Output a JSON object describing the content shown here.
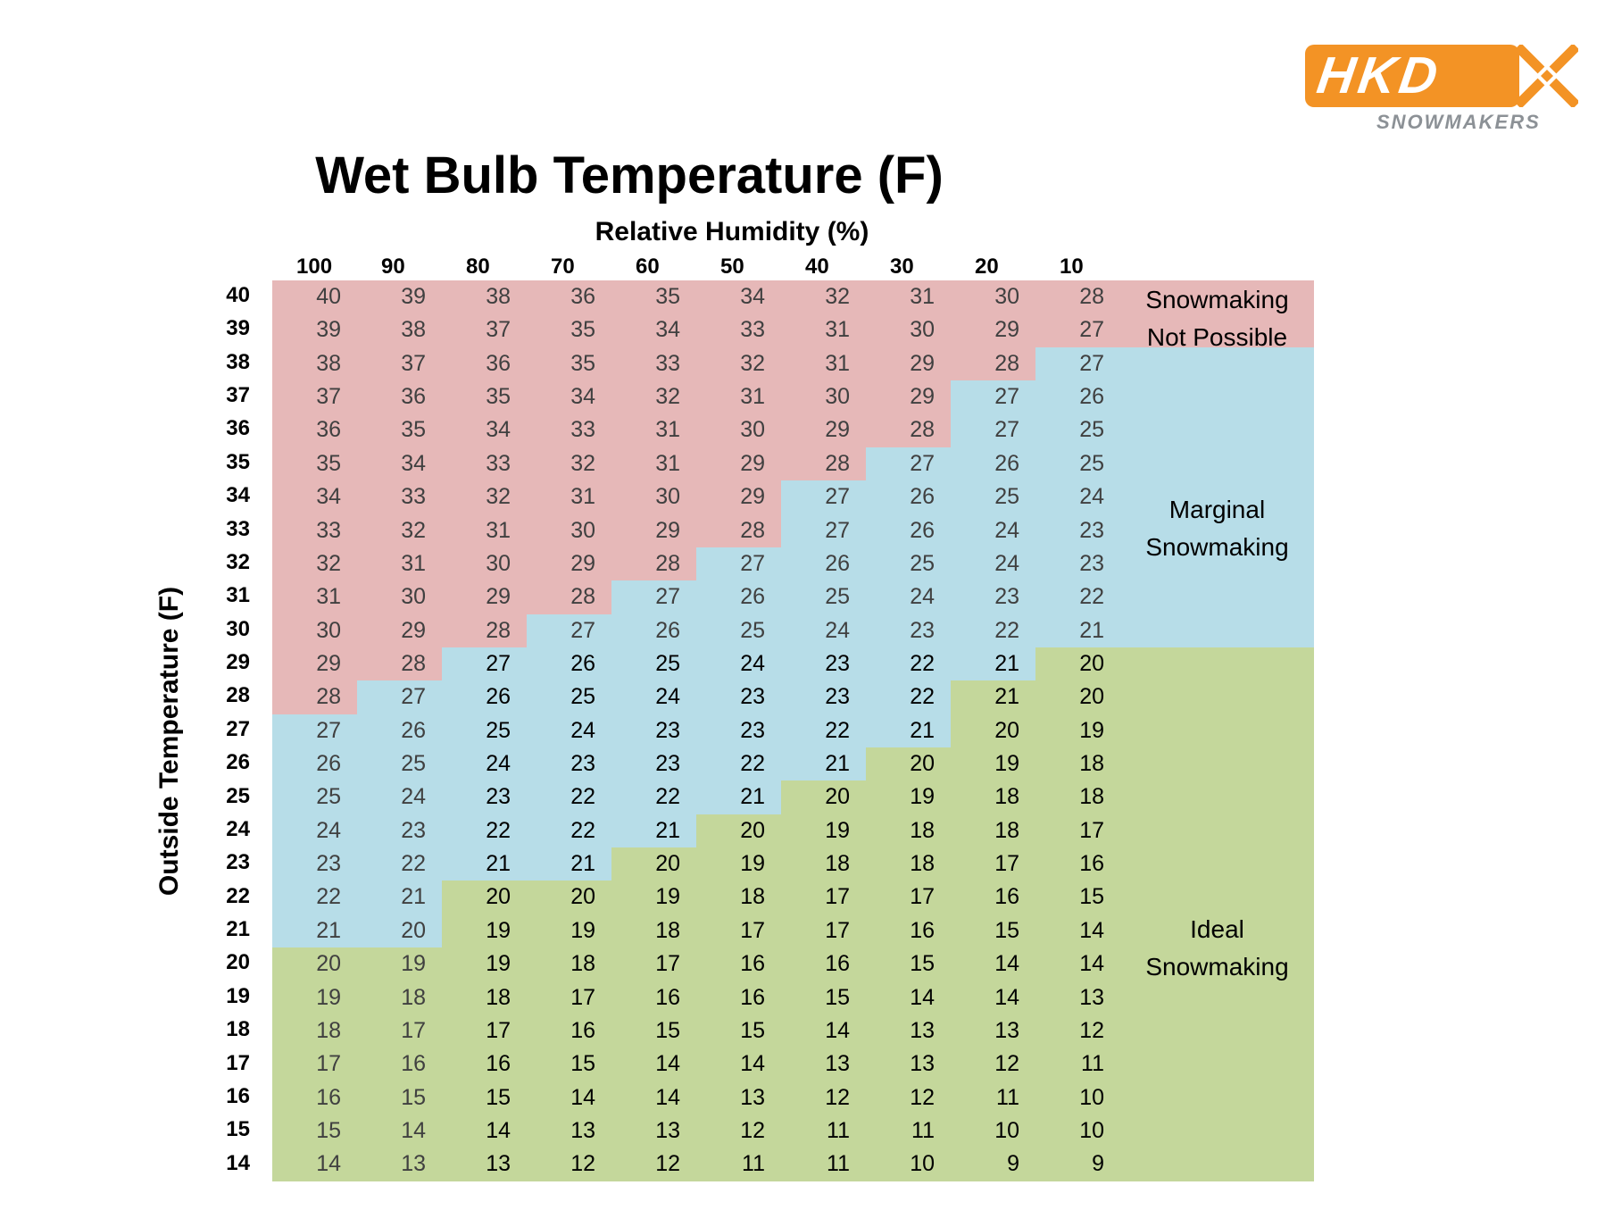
{
  "logo": {
    "brand": "HKD",
    "tagline": "SNOWMAKERS",
    "color_primary": "#F39325",
    "color_secondary": "#8C9196"
  },
  "colors": {
    "not_possible": "#E6B8B8",
    "marginal": "#B7DDE8",
    "ideal": "#C4D79B",
    "text_gray": "#404040",
    "text_black": "#000000"
  },
  "zones": {
    "not_possible": "Snowmaking Not Possible",
    "not_possible_line1": "Snowmaking",
    "not_possible_line2": "Not Possible",
    "marginal_line1": "Marginal",
    "marginal_line2": "Snowmaking",
    "ideal_line1": "Ideal",
    "ideal_line2": "Snowmaking"
  },
  "chart_data": {
    "type": "table",
    "title": "Wet Bulb Temperature (F)",
    "xlabel": "Relative Humidity (%)",
    "ylabel": "Outside Temperature (F)",
    "columns": [
      "100",
      "90",
      "80",
      "70",
      "60",
      "50",
      "40",
      "30",
      "20",
      "10"
    ],
    "rows": [
      {
        "temp": "40",
        "values": [
          "40",
          "39",
          "38",
          "36",
          "35",
          "34",
          "32",
          "31",
          "30",
          "28"
        ],
        "pink": 10,
        "blue": 0
      },
      {
        "temp": "39",
        "values": [
          "39",
          "38",
          "37",
          "35",
          "34",
          "33",
          "31",
          "30",
          "29",
          "27"
        ],
        "pink": 10,
        "blue": 0
      },
      {
        "temp": "38",
        "values": [
          "38",
          "37",
          "36",
          "35",
          "33",
          "32",
          "31",
          "29",
          "28",
          "27"
        ],
        "pink": 9,
        "blue": 1
      },
      {
        "temp": "37",
        "values": [
          "37",
          "36",
          "35",
          "34",
          "32",
          "31",
          "30",
          "29",
          "27",
          "26"
        ],
        "pink": 8,
        "blue": 2
      },
      {
        "temp": "36",
        "values": [
          "36",
          "35",
          "34",
          "33",
          "31",
          "30",
          "29",
          "28",
          "27",
          "25"
        ],
        "pink": 8,
        "blue": 2
      },
      {
        "temp": "35",
        "values": [
          "35",
          "34",
          "33",
          "32",
          "31",
          "29",
          "28",
          "27",
          "26",
          "25"
        ],
        "pink": 7,
        "blue": 3
      },
      {
        "temp": "34",
        "values": [
          "34",
          "33",
          "32",
          "31",
          "30",
          "29",
          "27",
          "26",
          "25",
          "24"
        ],
        "pink": 6,
        "blue": 4
      },
      {
        "temp": "33",
        "values": [
          "33",
          "32",
          "31",
          "30",
          "29",
          "28",
          "27",
          "26",
          "24",
          "23"
        ],
        "pink": 6,
        "blue": 4
      },
      {
        "temp": "32",
        "values": [
          "32",
          "31",
          "30",
          "29",
          "28",
          "27",
          "26",
          "25",
          "24",
          "23"
        ],
        "pink": 5,
        "blue": 5
      },
      {
        "temp": "31",
        "values": [
          "31",
          "30",
          "29",
          "28",
          "27",
          "26",
          "25",
          "24",
          "23",
          "22"
        ],
        "pink": 4,
        "blue": 6
      },
      {
        "temp": "30",
        "values": [
          "30",
          "29",
          "28",
          "27",
          "26",
          "25",
          "24",
          "23",
          "22",
          "21"
        ],
        "pink": 3,
        "blue": 7
      },
      {
        "temp": "29",
        "values": [
          "29",
          "28",
          "27",
          "26",
          "25",
          "24",
          "23",
          "22",
          "21",
          "20"
        ],
        "pink": 2,
        "blue": 7
      },
      {
        "temp": "28",
        "values": [
          "28",
          "27",
          "26",
          "25",
          "24",
          "23",
          "23",
          "22",
          "21",
          "20"
        ],
        "pink": 1,
        "blue": 7
      },
      {
        "temp": "27",
        "values": [
          "27",
          "26",
          "25",
          "24",
          "23",
          "23",
          "22",
          "21",
          "20",
          "19"
        ],
        "pink": 0,
        "blue": 8
      },
      {
        "temp": "26",
        "values": [
          "26",
          "25",
          "24",
          "23",
          "23",
          "22",
          "21",
          "20",
          "19",
          "18"
        ],
        "pink": 0,
        "blue": 7
      },
      {
        "temp": "25",
        "values": [
          "25",
          "24",
          "23",
          "22",
          "22",
          "21",
          "20",
          "19",
          "18",
          "18"
        ],
        "pink": 0,
        "blue": 6
      },
      {
        "temp": "24",
        "values": [
          "24",
          "23",
          "22",
          "22",
          "21",
          "20",
          "19",
          "18",
          "18",
          "17"
        ],
        "pink": 0,
        "blue": 5
      },
      {
        "temp": "23",
        "values": [
          "23",
          "22",
          "21",
          "21",
          "20",
          "19",
          "18",
          "18",
          "17",
          "16"
        ],
        "pink": 0,
        "blue": 4
      },
      {
        "temp": "22",
        "values": [
          "22",
          "21",
          "20",
          "20",
          "19",
          "18",
          "17",
          "17",
          "16",
          "15"
        ],
        "pink": 0,
        "blue": 2
      },
      {
        "temp": "21",
        "values": [
          "21",
          "20",
          "19",
          "19",
          "18",
          "17",
          "17",
          "16",
          "15",
          "14"
        ],
        "pink": 0,
        "blue": 2
      },
      {
        "temp": "20",
        "values": [
          "20",
          "19",
          "19",
          "18",
          "17",
          "16",
          "16",
          "15",
          "14",
          "14"
        ],
        "pink": 0,
        "blue": 0
      },
      {
        "temp": "19",
        "values": [
          "19",
          "18",
          "18",
          "17",
          "16",
          "16",
          "15",
          "14",
          "14",
          "13"
        ],
        "pink": 0,
        "blue": 0
      },
      {
        "temp": "18",
        "values": [
          "18",
          "17",
          "17",
          "16",
          "15",
          "15",
          "14",
          "13",
          "13",
          "12"
        ],
        "pink": 0,
        "blue": 0
      },
      {
        "temp": "17",
        "values": [
          "17",
          "16",
          "16",
          "15",
          "14",
          "14",
          "13",
          "13",
          "12",
          "11"
        ],
        "pink": 0,
        "blue": 0
      },
      {
        "temp": "16",
        "values": [
          "16",
          "15",
          "15",
          "14",
          "14",
          "13",
          "12",
          "12",
          "11",
          "10"
        ],
        "pink": 0,
        "blue": 0
      },
      {
        "temp": "15",
        "values": [
          "15",
          "14",
          "14",
          "13",
          "13",
          "12",
          "11",
          "11",
          "10",
          "10"
        ],
        "pink": 0,
        "blue": 0
      },
      {
        "temp": "14",
        "values": [
          "14",
          "13",
          "13",
          "12",
          "12",
          "11",
          "11",
          "10",
          "9",
          "9"
        ],
        "pink": 0,
        "blue": 0
      }
    ],
    "legend": [
      "Snowmaking Not Possible",
      "Marginal Snowmaking",
      "Ideal Snowmaking"
    ]
  }
}
